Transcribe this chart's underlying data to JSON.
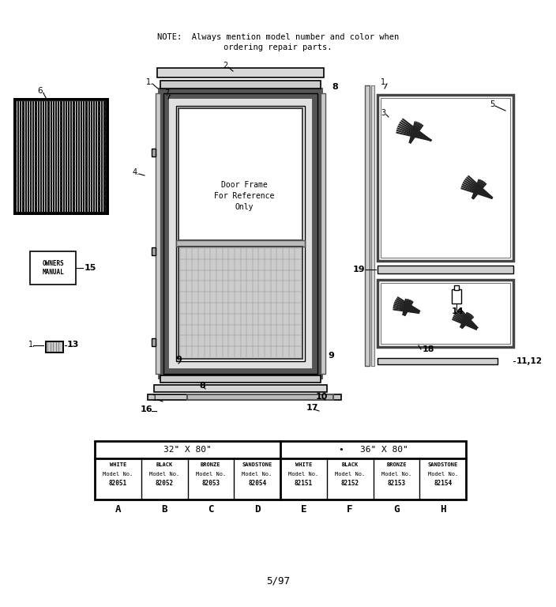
{
  "bg_color": "#ffffff",
  "note_text": "NOTE:  Always mention model number and color when\n            ordering repair parts.",
  "footer_text": "5/97",
  "table": {
    "header1_left": "32\" X 80\"",
    "header1_right": "•   36\" X 80\"",
    "cols": [
      {
        "label": "A",
        "color": "WHITE",
        "model": "82051"
      },
      {
        "label": "B",
        "color": "BLACK",
        "model": "82052"
      },
      {
        "label": "C",
        "color": "BRONZE",
        "model": "82053"
      },
      {
        "label": "D",
        "color": "SANDSTONE",
        "model": "82054"
      },
      {
        "label": "E",
        "color": "WHITE",
        "model": "82151"
      },
      {
        "label": "F",
        "color": "BLACK",
        "model": "82152"
      },
      {
        "label": "G",
        "color": "BRONZE",
        "model": "82153"
      },
      {
        "label": "H",
        "color": "SANDSTONE",
        "model": "82154"
      }
    ]
  }
}
